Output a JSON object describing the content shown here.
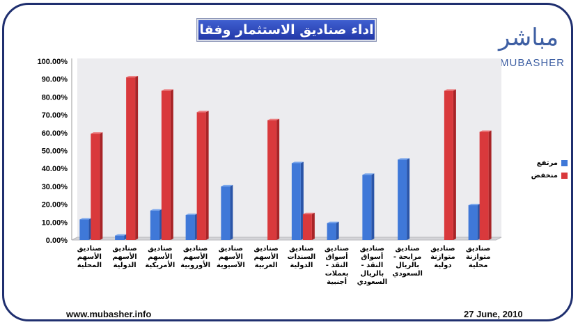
{
  "title": "اداء صناديق الاستثمار وفقا لفئتها",
  "logo": {
    "arabic": "مباشر",
    "english": "MUBASHER"
  },
  "footer": {
    "website": "www.mubasher.info",
    "date": "27 June, 2010"
  },
  "colors": {
    "frame": "#1f2f6f",
    "title_bg": "#2a40b5",
    "series_high": "#3f78d8",
    "series_low": "#d9393c"
  },
  "chart_data": {
    "type": "bar",
    "categories": [
      "صناديق الأسهم المحلية",
      "صناديق الأسهم الدولية",
      "صناديق الأسهم الأمريكية",
      "صناديق الأسهم الأوروبية",
      "صناديق الأسهم الآسيوية",
      "صناديق الأسهم العربية",
      "صناديق السندات الدولية",
      "صناديق أسواق النقد - بعملات أجنبية",
      "صناديق أسواق النقد - بالريال السعودي",
      "صناديق مرابحة - بالريال السعودي",
      "صناديق متوازنة دولية",
      "صناديق متوازنة محلية"
    ],
    "series": [
      {
        "name": "مرتفع",
        "values": [
          11.5,
          2.5,
          16.5,
          14.0,
          30.0,
          0.0,
          43.0,
          9.5,
          36.5,
          45.0,
          0.0,
          19.5
        ]
      },
      {
        "name": "منخفض",
        "values": [
          59.5,
          91.0,
          83.5,
          71.5,
          0.0,
          67.0,
          14.5,
          0.0,
          0.0,
          0.0,
          83.5,
          60.5
        ]
      }
    ],
    "ytick_labels": [
      "0.00%",
      "10.00%",
      "20.00%",
      "30.00%",
      "40.00%",
      "50.00%",
      "60.00%",
      "70.00%",
      "80.00%",
      "90.00%",
      "100.00%"
    ],
    "ylim": [
      0,
      100
    ],
    "grid": false,
    "legend_position": "right"
  }
}
